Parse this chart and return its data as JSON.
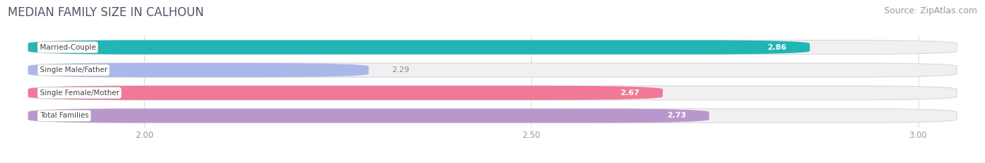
{
  "title": "MEDIAN FAMILY SIZE IN CALHOUN",
  "source": "Source: ZipAtlas.com",
  "categories": [
    "Married-Couple",
    "Single Male/Father",
    "Single Female/Mother",
    "Total Families"
  ],
  "values": [
    2.86,
    2.29,
    2.67,
    2.73
  ],
  "bar_colors": [
    "#22b5b5",
    "#aab8e8",
    "#f07898",
    "#b898cc"
  ],
  "bar_bg_colors": [
    "#f0f0f0",
    "#f0f0f0",
    "#f0f0f0",
    "#f0f0f0"
  ],
  "xlim_left": 1.82,
  "xlim_right": 3.08,
  "xstart": 1.85,
  "xticks": [
    2.0,
    2.5,
    3.0
  ],
  "xtick_labels": [
    "2.00",
    "2.50",
    "3.00"
  ],
  "title_fontsize": 12,
  "source_fontsize": 9,
  "bar_height": 0.62,
  "bar_gap": 0.38
}
